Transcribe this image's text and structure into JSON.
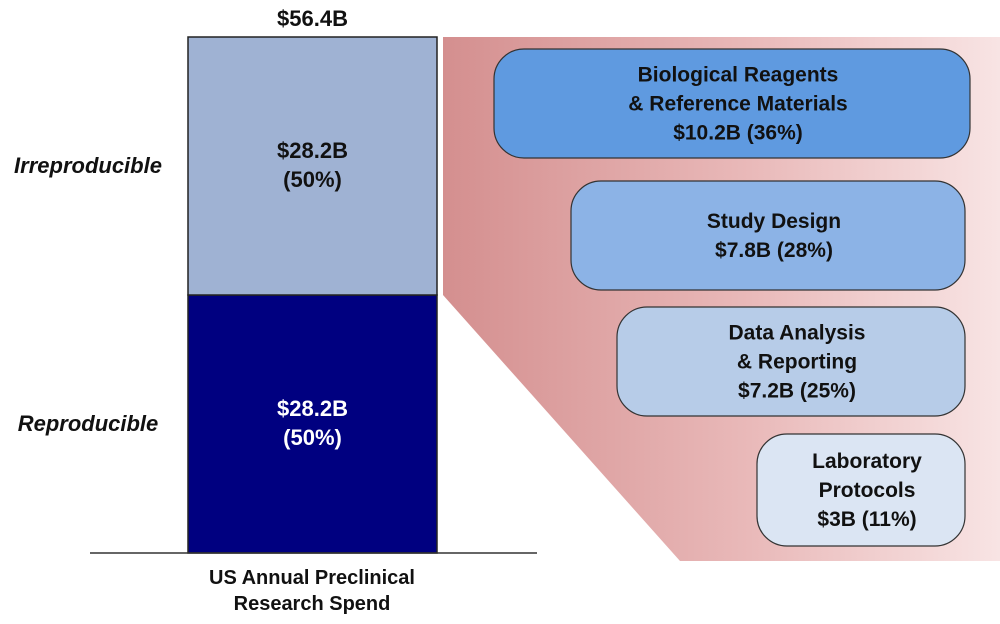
{
  "chart_data": {
    "type": "bar",
    "stacked": true,
    "total_label": "$56.4B",
    "xlabel_lines": [
      "US Annual  Preclinical",
      "Research Spend"
    ],
    "ylim": [
      0,
      56.4
    ],
    "segments": [
      {
        "name": "Reproducible",
        "value": 28.2,
        "value_label": "$28.2B",
        "pct_label": "(50%)",
        "color": "#000080",
        "text_color": "#ffffff"
      },
      {
        "name": "Irreproducible",
        "value": 28.2,
        "value_label": "$28.2B",
        "pct_label": "(50%)",
        "color": "#9fb2d3",
        "text_color": "#111111"
      }
    ],
    "breakdown": {
      "of": "Irreproducible",
      "background_color": "#dc9a9a",
      "items": [
        {
          "lines": [
            "Biological Reagents",
            "& Reference Materials",
            "$10.2B (36%)"
          ],
          "value": 10.2,
          "pct": 36,
          "color": "#5f9ae0"
        },
        {
          "lines": [
            "Study Design",
            "$7.8B (28%)"
          ],
          "value": 7.8,
          "pct": 28,
          "color": "#8cb3e6"
        },
        {
          "lines": [
            "Data Analysis",
            "& Reporting",
            "$7.2B (25%)"
          ],
          "value": 7.2,
          "pct": 25,
          "color": "#b7cce8"
        },
        {
          "lines": [
            "Laboratory",
            "Protocols",
            "$3B (11%)"
          ],
          "value": 3,
          "pct": 11,
          "color": "#dbe5f3"
        }
      ]
    }
  }
}
